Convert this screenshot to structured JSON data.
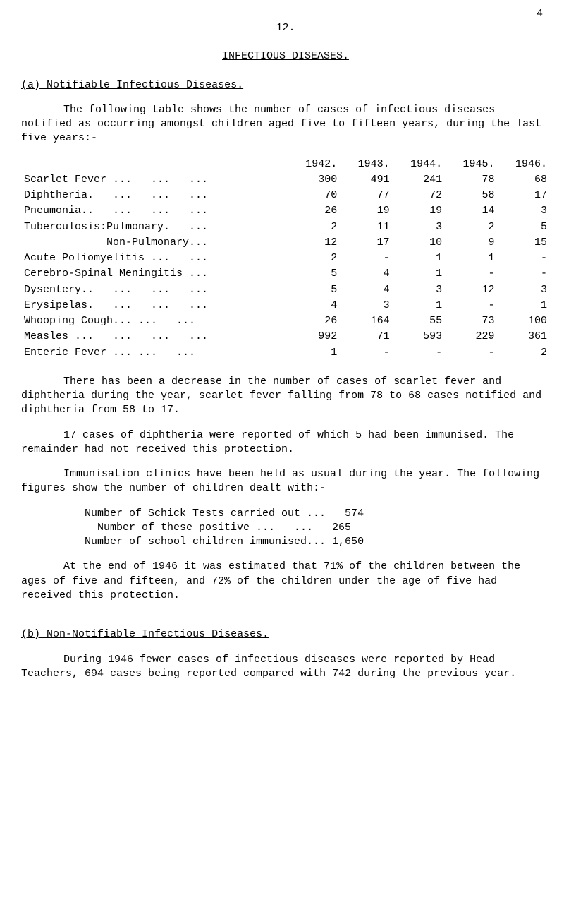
{
  "corner_mark": "4",
  "page_number": "12.",
  "main_title": "INFECTIOUS DISEASES.",
  "section_a": {
    "letter": "(a)",
    "heading": "Notifiable Infectious Diseases.",
    "intro": "The following table shows the number of cases of infectious diseases notified as occurring amongst children aged five to fifteen years, during the last five years:-",
    "table": {
      "years": [
        "1942.",
        "1943.",
        "1944.",
        "1945.",
        "1946."
      ],
      "rows": [
        {
          "label": "Scarlet Fever ...   ...   ...",
          "vals": [
            "300",
            "491",
            "241",
            "78",
            "68"
          ]
        },
        {
          "label": "Diphtheria.   ...   ...   ...",
          "vals": [
            "70",
            "77",
            "72",
            "58",
            "17"
          ]
        },
        {
          "label": "Pneumonia..   ...   ...   ...",
          "vals": [
            "26",
            "19",
            "19",
            "14",
            "3"
          ]
        },
        {
          "label": "Tuberculosis:Pulmonary.   ...",
          "vals": [
            "2",
            "11",
            "3",
            "2",
            "5"
          ]
        },
        {
          "label": "             Non-Pulmonary...",
          "vals": [
            "12",
            "17",
            "10",
            "9",
            "15"
          ]
        },
        {
          "label": "Acute Poliomyelitis ...   ...",
          "vals": [
            "2",
            "-",
            "1",
            "1",
            "-"
          ]
        },
        {
          "label": "Cerebro-Spinal Meningitis ...",
          "vals": [
            "5",
            "4",
            "1",
            "-",
            "-"
          ]
        },
        {
          "label": "Dysentery..   ...   ...   ...",
          "vals": [
            "5",
            "4",
            "3",
            "12",
            "3"
          ]
        },
        {
          "label": "Erysipelas.   ...   ...   ...",
          "vals": [
            "4",
            "3",
            "1",
            "-",
            "1"
          ]
        },
        {
          "label": "Whooping Cough... ...   ...",
          "vals": [
            "26",
            "164",
            "55",
            "73",
            "100"
          ]
        },
        {
          "label": "Measles ...   ...   ...   ...",
          "vals": [
            "992",
            "71",
            "593",
            "229",
            "361"
          ]
        },
        {
          "label": "Enteric Fever ... ...   ...",
          "vals": [
            "1",
            "-",
            "-",
            "-",
            "2"
          ]
        }
      ]
    },
    "para1": "There has been a decrease in the number of cases of scarlet fever and diphtheria during the year, scarlet fever falling from 78 to 68 cases notified and diphtheria from 58 to 17.",
    "para2": "17 cases of diphtheria were reported of which 5 had been immunised.  The remainder had not received this protection.",
    "para3": "Immunisation clinics have been held as usual during the year.  The following figures show the number of children dealt with:-",
    "stats": {
      "line1": "Number of Schick Tests carried out ...   574",
      "line2": "  Number of these positive ...   ...   265",
      "line3": "Number of school children immunised... 1,650"
    },
    "para4": "At the end of 1946 it was estimated that 71% of the children between the ages of five and fifteen, and 72% of the children under the age of five had received this protection."
  },
  "section_b": {
    "letter": "(b)",
    "heading": "Non-Notifiable Infectious Diseases.",
    "para1": "During 1946 fewer cases of infectious diseases were reported by Head Teachers, 694 cases being reported compared with 742 during the previous year."
  }
}
